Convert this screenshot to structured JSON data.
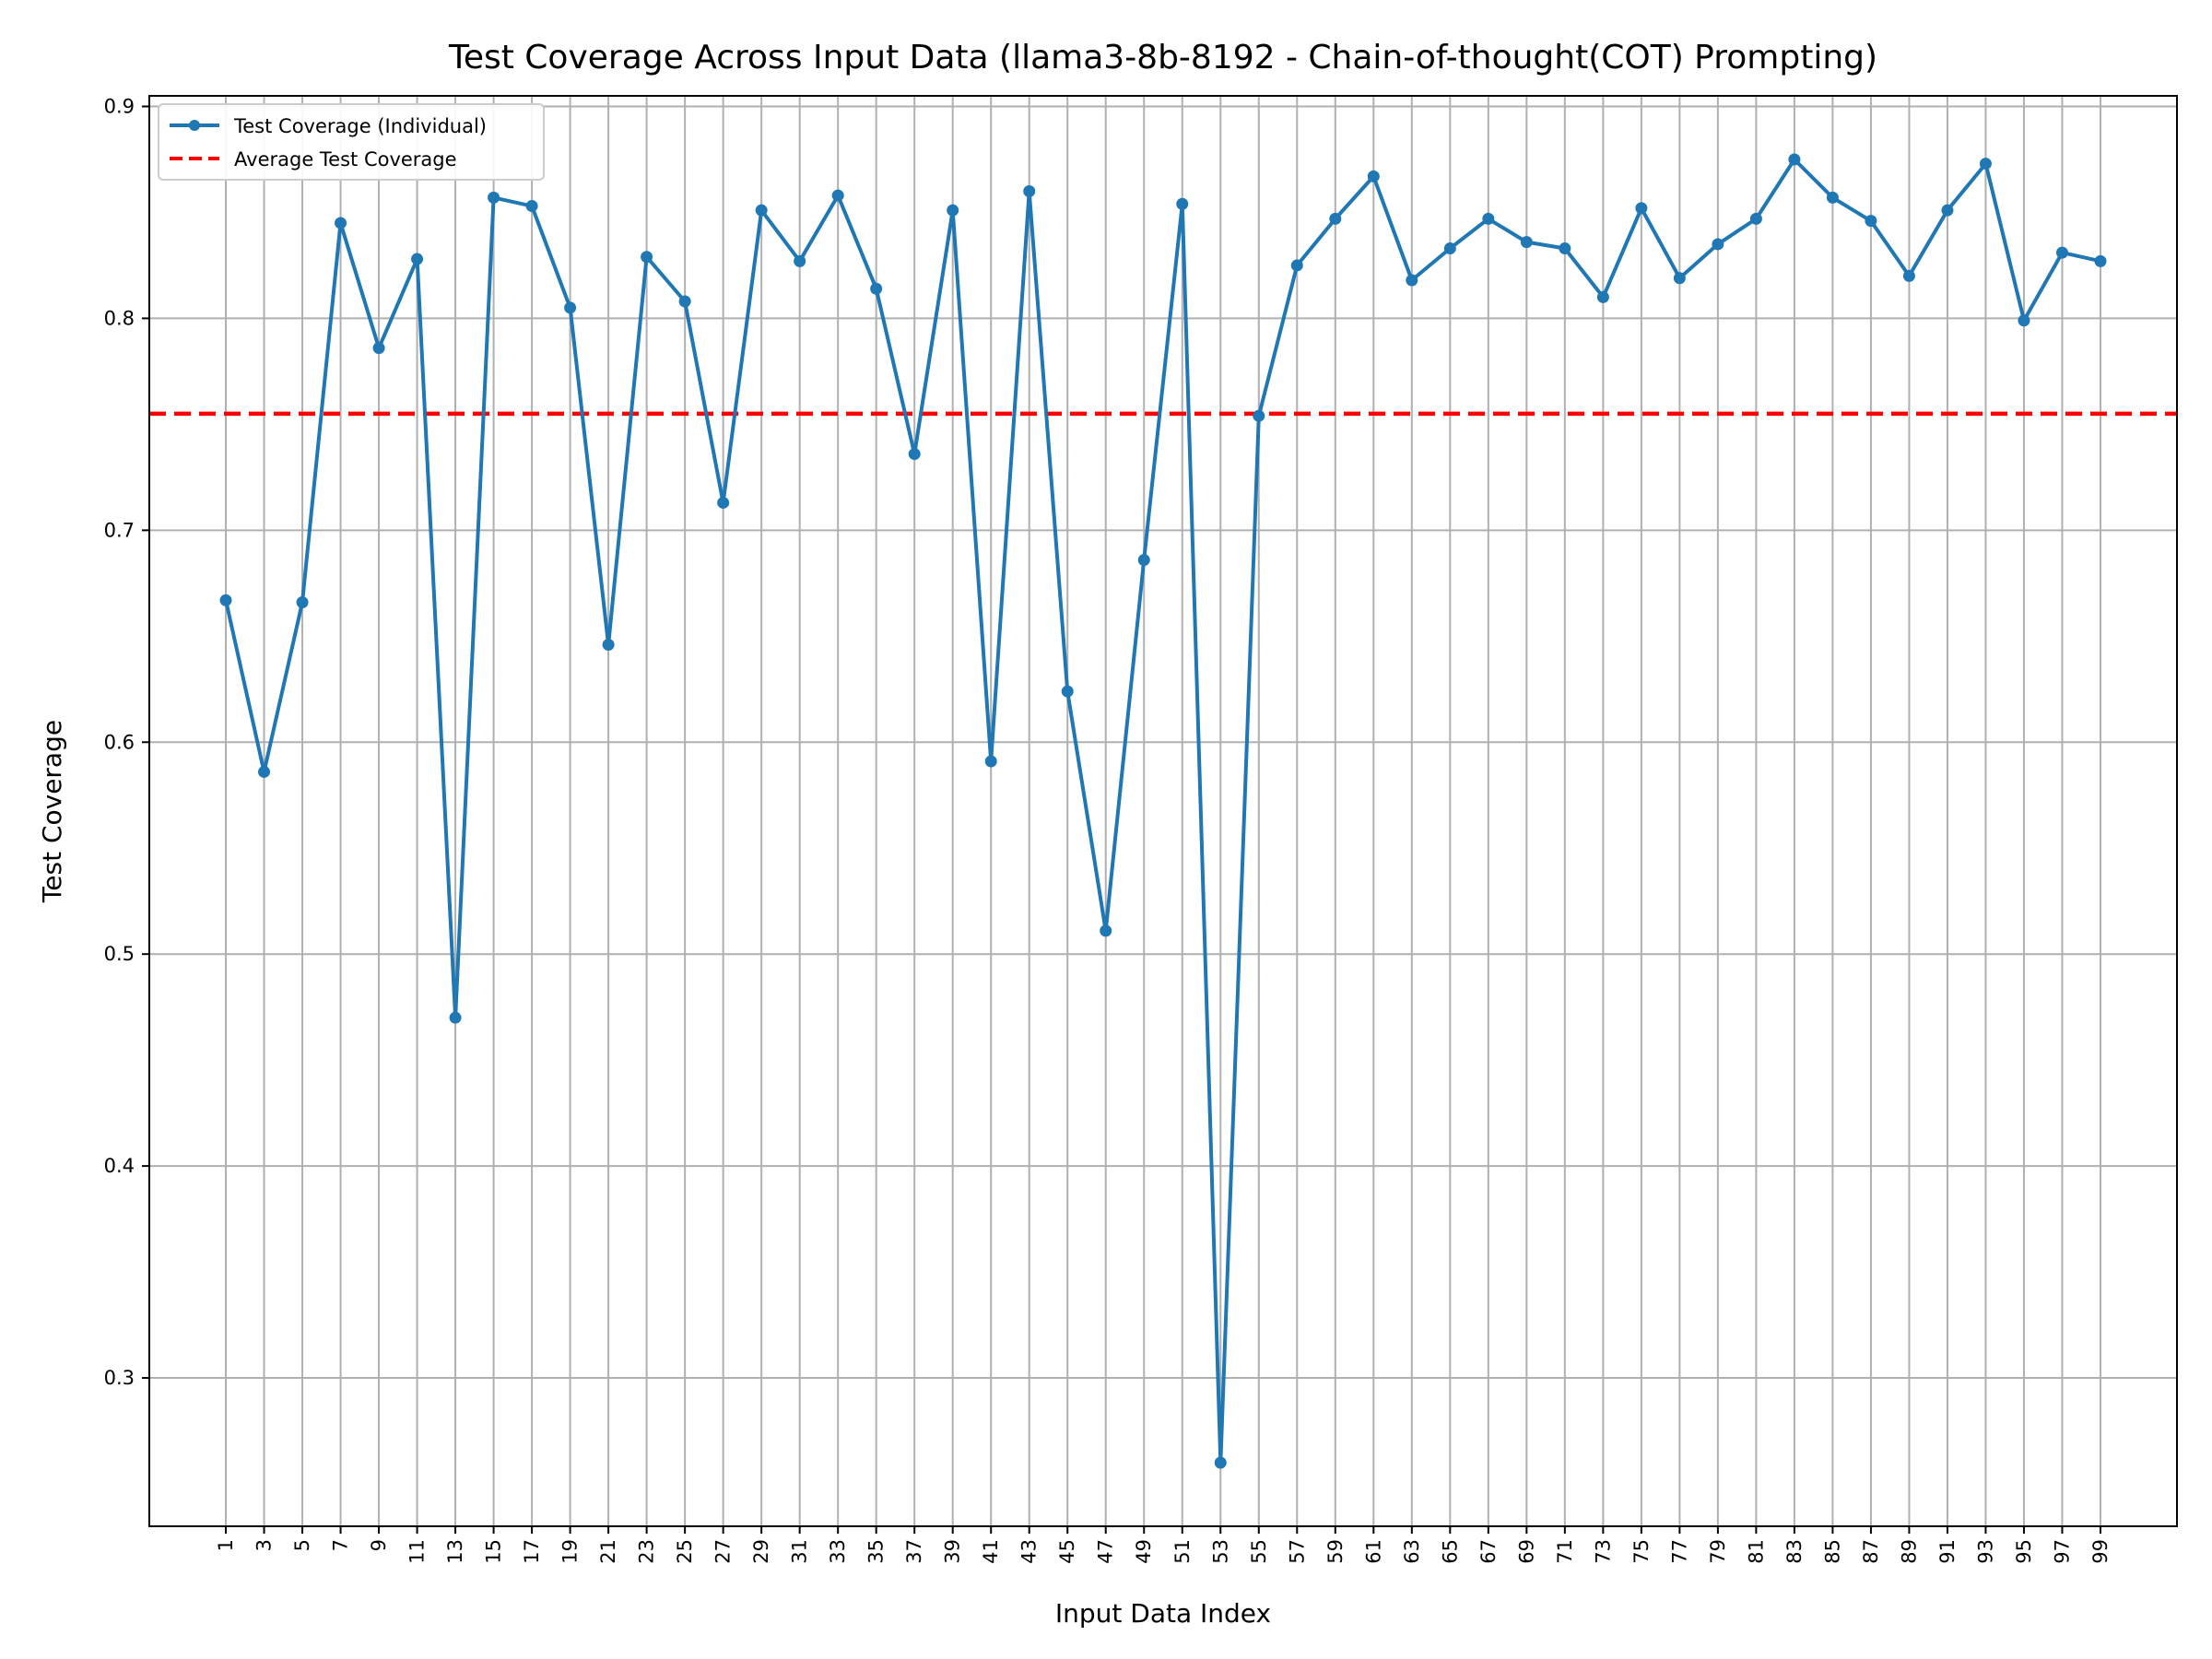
{
  "chart_data": {
    "type": "line",
    "title": "Test Coverage Across Input Data (llama3-8b-8192 - Chain-of-thought(COT) Prompting)",
    "xlabel": "Input Data Index",
    "ylabel": "Test Coverage",
    "xlim": [
      -3,
      103
    ],
    "ylim": [
      0.23,
      0.905
    ],
    "xticks": [
      1,
      3,
      5,
      7,
      9,
      11,
      13,
      15,
      17,
      19,
      21,
      23,
      25,
      27,
      29,
      31,
      33,
      35,
      37,
      39,
      41,
      43,
      45,
      47,
      49,
      51,
      53,
      55,
      57,
      59,
      61,
      63,
      65,
      67,
      69,
      71,
      73,
      75,
      77,
      79,
      81,
      83,
      85,
      87,
      89,
      91,
      93,
      95,
      97,
      99
    ],
    "yticks": [
      0.3,
      0.4,
      0.5,
      0.6,
      0.7,
      0.8,
      0.9
    ],
    "ytick_labels": [
      "0.3",
      "0.4",
      "0.5",
      "0.6",
      "0.7",
      "0.8",
      "0.9"
    ],
    "grid": true,
    "legend_position": "top-left",
    "series": [
      {
        "name": "Test Coverage (Individual)",
        "color": "#1f77b4",
        "style": "solid-with-markers",
        "x": [
          1,
          3,
          5,
          7,
          9,
          11,
          13,
          15,
          17,
          19,
          21,
          23,
          25,
          27,
          29,
          31,
          33,
          35,
          37,
          39,
          41,
          43,
          45,
          47,
          49,
          51,
          53,
          55,
          57,
          59,
          61,
          63,
          65,
          67,
          69,
          71,
          73,
          75,
          77,
          79,
          81,
          83,
          85,
          87,
          89,
          91,
          93,
          95,
          97,
          99
        ],
        "values": [
          0.667,
          0.586,
          0.666,
          0.845,
          0.786,
          0.828,
          0.47,
          0.857,
          0.853,
          0.805,
          0.646,
          0.829,
          0.808,
          0.713,
          0.851,
          0.827,
          0.858,
          0.814,
          0.736,
          0.851,
          0.591,
          0.86,
          0.624,
          0.511,
          0.686,
          0.854,
          0.26,
          0.754,
          0.825,
          0.847,
          0.867,
          0.818,
          0.833,
          0.847,
          0.836,
          0.833,
          0.81,
          0.852,
          0.819,
          0.835,
          0.847,
          0.875,
          0.857,
          0.846,
          0.82,
          0.851,
          0.873,
          0.799,
          0.831,
          0.827
        ]
      },
      {
        "name": "Average Test Coverage",
        "color": "#ff0000",
        "style": "dashed",
        "value": 0.755
      }
    ]
  }
}
